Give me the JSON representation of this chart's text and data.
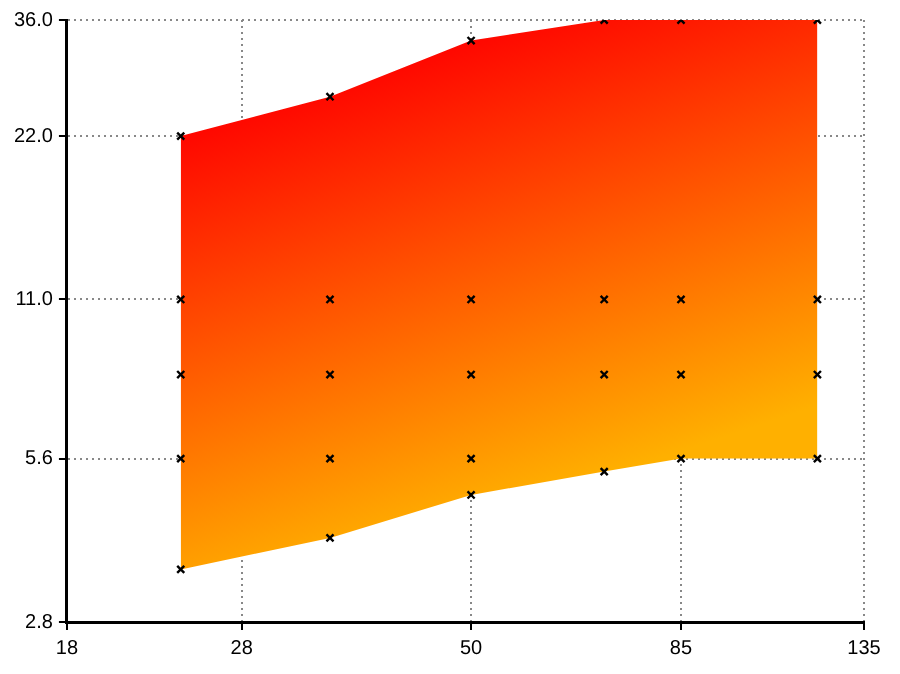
{
  "chart_data": {
    "type": "area",
    "x": [
      24,
      35,
      50,
      70,
      85,
      120
    ],
    "series": [
      {
        "type": "scatter",
        "color": "#000000",
        "values": [
          3.5,
          4.0,
          4.8,
          5.3,
          5.6,
          5.6
        ]
      },
      {
        "type": "area",
        "color": "#ff0000",
        "values": [
          22,
          26,
          33,
          36,
          36,
          36
        ]
      },
      {
        "type": "scatter",
        "color": "#000000",
        "values": [
          11,
          11,
          11,
          11,
          11,
          11
        ]
      },
      {
        "type": "scatter",
        "color": "#000000",
        "values": [
          8,
          8,
          8,
          8,
          8,
          8
        ]
      },
      {
        "type": "scatter",
        "color": "#000000",
        "values": [
          5.6,
          5.6,
          5.6,
          null,
          null,
          null
        ]
      }
    ],
    "log": "xy",
    "xlim": [
      18,
      135
    ],
    "ylim": [
      2.8,
      36
    ],
    "xticks": [
      18,
      28,
      50,
      85,
      135
    ],
    "yticks": [
      2.8,
      5.6,
      {
        "value": 11,
        "label": "11.0"
      },
      {
        "value": 22,
        "label": "22.0"
      },
      {
        "value": 36,
        "label": "36.0"
      }
    ],
    "grid": true,
    "marker": "cross",
    "legend": false
  }
}
